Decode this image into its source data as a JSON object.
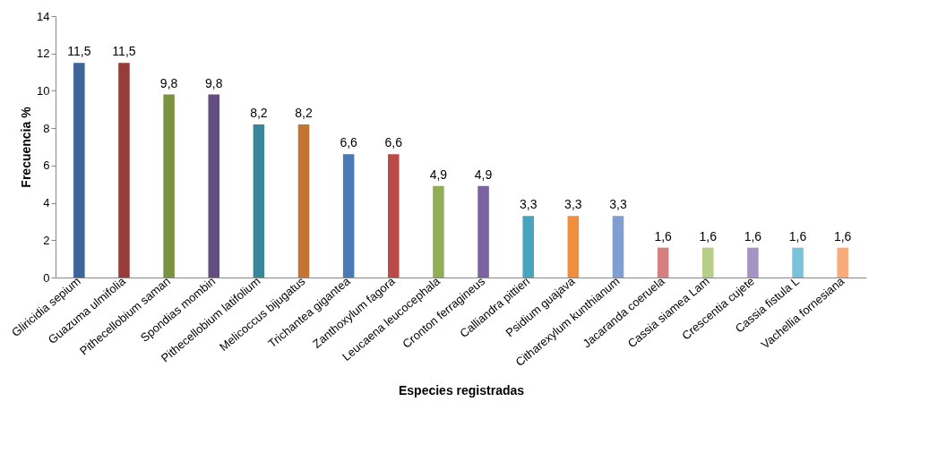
{
  "chart_data": {
    "type": "bar",
    "xlabel": "Especies registradas",
    "ylabel": "Frecuencia %",
    "categories": [
      "Gliricidia sepium",
      "Guazuma ulmifolia",
      "Pithecellobium saman",
      "Spondias mombin",
      "Pithecellobium latifolium",
      "Melicoccus bijugatus",
      "Trichantea gigantea",
      "Zanthoxylum fagora",
      "Leucaena leucocephala",
      "Cronton ferragineus",
      "Calliandra pittieri",
      "Psidium guajava",
      "Citharexylum kunthianum",
      "Jacaranda coeruela",
      "Cassia siamea Lam",
      "Crescentia cujete",
      "Cassia fistula L",
      "Vachellia fornesiana"
    ],
    "values": [
      11.5,
      11.5,
      9.8,
      9.8,
      8.2,
      8.2,
      6.6,
      6.6,
      4.9,
      4.9,
      3.3,
      3.3,
      3.3,
      1.6,
      1.6,
      1.6,
      1.6,
      1.6
    ],
    "value_labels": [
      "11,5",
      "11,5",
      "9,8",
      "9,8",
      "8,2",
      "8,2",
      "6,6",
      "6,6",
      "4,9",
      "4,9",
      "3,3",
      "3,3",
      "3,3",
      "1,6",
      "1,6",
      "1,6",
      "1,6",
      "1,6"
    ],
    "colors": [
      "#3d6598",
      "#983c3a",
      "#7a9340",
      "#634e80",
      "#39879a",
      "#c47432",
      "#4a7ab5",
      "#b84b48",
      "#91ad55",
      "#7b62a0",
      "#46a5bd",
      "#ef8e3d",
      "#7f9fd1",
      "#d77f7e",
      "#b5ce88",
      "#a593c4",
      "#7ac2d9",
      "#f9ab7a"
    ],
    "ylim": [
      0,
      14
    ],
    "yticks": [
      0,
      2,
      4,
      6,
      8,
      10,
      12,
      14
    ],
    "grid": false
  }
}
